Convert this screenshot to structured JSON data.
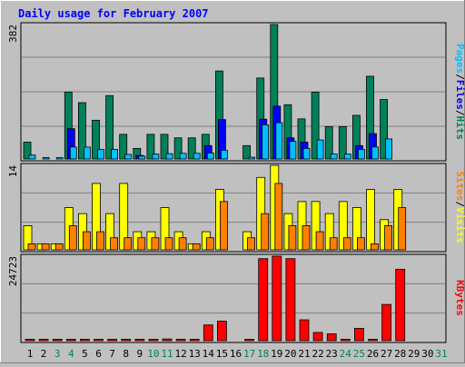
{
  "title": "Daily usage for February 2007",
  "colors": {
    "background": "#c0c0c0",
    "title": "#0000ff",
    "hits": "#00805a",
    "files": "#0000ff",
    "pages": "#00c0ff",
    "visits": "#ffff00",
    "sites": "#ff8000",
    "kbytes": "#ff0000",
    "weekend_day": "#00805a",
    "weekday": "#000000"
  },
  "chart_data": [
    {
      "type": "bar",
      "panel": "hits-files-pages",
      "axis_max_label": "382",
      "ylim": [
        0,
        382
      ],
      "x": [
        1,
        2,
        3,
        4,
        5,
        6,
        7,
        8,
        9,
        10,
        11,
        12,
        13,
        14,
        15,
        16,
        17,
        18,
        19,
        20,
        21,
        22,
        23,
        24,
        25,
        26,
        27,
        28,
        29,
        30,
        31
      ],
      "series": [
        {
          "name": "Hits",
          "values": [
            48,
            0,
            0,
            190,
            160,
            110,
            180,
            70,
            30,
            70,
            70,
            60,
            60,
            70,
            250,
            0,
            38,
            230,
            382,
            154,
            114,
            190,
            92,
            92,
            124,
            235,
            169,
            0,
            0,
            0,
            0
          ]
        },
        {
          "name": "Files",
          "values": [
            0,
            0,
            0,
            86,
            0,
            0,
            0,
            0,
            10,
            0,
            0,
            0,
            0,
            38,
            112,
            0,
            0,
            113,
            150,
            60,
            48,
            0,
            0,
            0,
            38,
            72,
            0,
            0,
            0,
            0,
            0
          ]
        },
        {
          "name": "Pages",
          "values": [
            11,
            4,
            4,
            34,
            34,
            27,
            27,
            13,
            8,
            14,
            15,
            16,
            16,
            17,
            25,
            0,
            5,
            97,
            103,
            50,
            30,
            54,
            14,
            14,
            27,
            34,
            57,
            0,
            0,
            0,
            0
          ]
        }
      ]
    },
    {
      "type": "bar",
      "panel": "visits-sites",
      "axis_max_label": "14",
      "ylim": [
        0,
        14
      ],
      "x": [
        1,
        2,
        3,
        4,
        5,
        6,
        7,
        8,
        9,
        10,
        11,
        12,
        13,
        14,
        15,
        16,
        17,
        18,
        19,
        20,
        21,
        22,
        23,
        24,
        25,
        26,
        27,
        28,
        29,
        30,
        31
      ],
      "series": [
        {
          "name": "Visits",
          "values": [
            4,
            1,
            1,
            7,
            6,
            11,
            6,
            11,
            3,
            3,
            7,
            3,
            1,
            3,
            10,
            0,
            3,
            12,
            14,
            6,
            8,
            8,
            6,
            8,
            7,
            10,
            5,
            10,
            0,
            0,
            0
          ]
        },
        {
          "name": "Sites",
          "values": [
            1,
            1,
            1,
            4,
            3,
            3,
            2,
            2,
            2,
            2,
            2,
            2,
            1,
            2,
            8,
            0,
            2,
            6,
            11,
            4,
            4,
            3,
            2,
            2,
            2,
            1,
            4,
            7,
            0,
            0,
            0
          ]
        }
      ]
    },
    {
      "type": "bar",
      "panel": "kbytes",
      "axis_max_label": "24723",
      "ylim": [
        0,
        24723
      ],
      "x": [
        1,
        2,
        3,
        4,
        5,
        6,
        7,
        8,
        9,
        10,
        11,
        12,
        13,
        14,
        15,
        16,
        17,
        18,
        19,
        20,
        21,
        22,
        23,
        24,
        25,
        26,
        27,
        28,
        29,
        30,
        31
      ],
      "series": [
        {
          "name": "KBytes",
          "values": [
            100,
            100,
            100,
            100,
            100,
            100,
            100,
            400,
            100,
            100,
            500,
            100,
            100,
            4600,
            5700,
            0,
            100,
            24000,
            24723,
            24000,
            6100,
            2400,
            2000,
            100,
            3600,
            100,
            10600,
            20900,
            0,
            0,
            0
          ]
        }
      ]
    }
  ],
  "x_labels": [
    "1",
    "2",
    "3",
    "4",
    "5",
    "6",
    "7",
    "8",
    "9",
    "10",
    "11",
    "12",
    "13",
    "14",
    "15",
    "16",
    "17",
    "18",
    "19",
    "20",
    "21",
    "22",
    "23",
    "24",
    "25",
    "26",
    "27",
    "28",
    "29",
    "30",
    "31"
  ],
  "weekend_days": [
    3,
    4,
    10,
    11,
    17,
    18,
    24,
    25,
    31
  ],
  "legend": {
    "top": [
      "Pages",
      "Files",
      "Hits"
    ],
    "middle": [
      "Sites",
      "Visits"
    ],
    "bottom": [
      "KBytes"
    ],
    "separator": "/"
  }
}
